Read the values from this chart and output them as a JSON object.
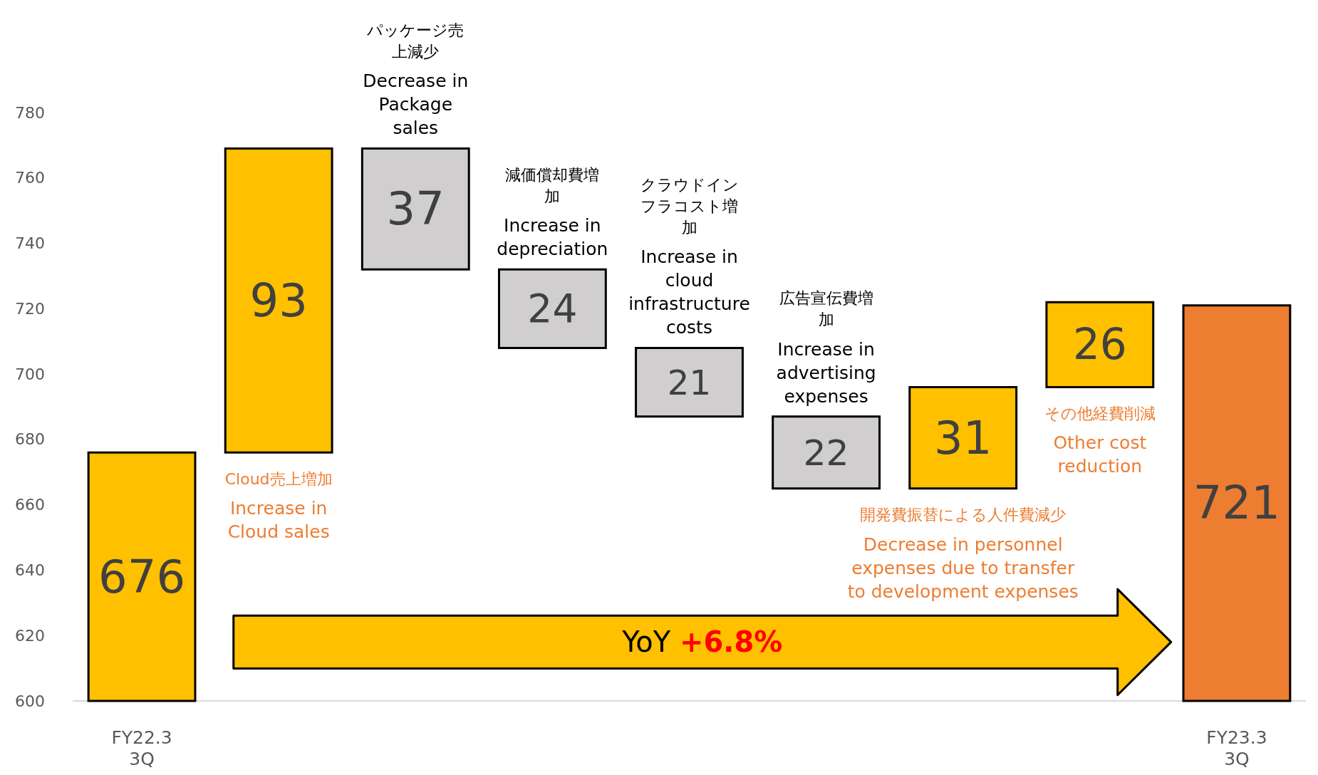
{
  "chart_data": {
    "type": "bar",
    "categories": [
      "FY22.3\n3Q",
      null,
      null,
      null,
      null,
      null,
      null,
      null,
      "FY23.3\n3Q"
    ],
    "values": [
      676,
      93,
      -37,
      -24,
      -21,
      -22,
      31,
      26,
      721
    ],
    "base": [
      0,
      676,
      769,
      732,
      708,
      687,
      665,
      696,
      0
    ],
    "colors": [
      "#ffc000",
      "#ffc000",
      "#d0cece",
      "#d0cece",
      "#d0cece",
      "#d0cece",
      "#ffc000",
      "#ffc000",
      "#ed7d31"
    ],
    "value_labels": [
      "676",
      "93",
      "37",
      "24",
      "21",
      "22",
      "31",
      "26",
      "721"
    ],
    "ylim": [
      600,
      780
    ],
    "yticks": [
      600,
      620,
      640,
      660,
      680,
      700,
      720,
      740,
      760,
      780
    ],
    "grid": false,
    "annotations": [
      "Cloud売上増加",
      "Increase in\nCloud sales",
      "パッケージ売上減少",
      "Decrease in\nPackage\nsales",
      "減価償却費増加",
      "Increase in\ndepreciation",
      "クラウドインフラコスト増加",
      "Increase in\ncloud\ninfrastructure\ncosts",
      "広告宣伝費増加",
      "Increase in\nadvertising\nexpenses",
      "開発費振替による人件費減少",
      "Decrease in personnel\nexpenses due to transfer\nto development expenses",
      "その他経費削減",
      "Other cost\nreduction",
      "YoY +6.8%"
    ]
  }
}
